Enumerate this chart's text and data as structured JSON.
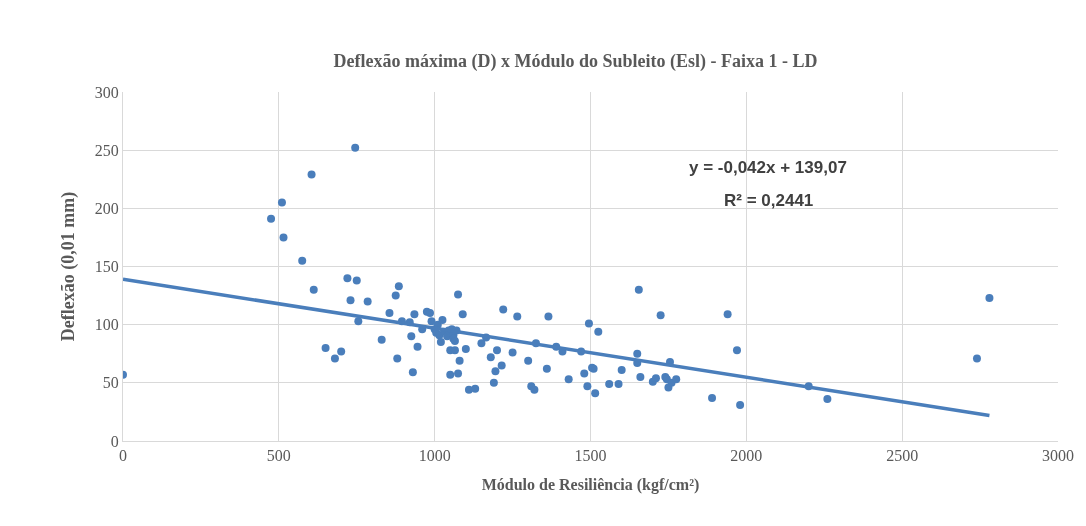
{
  "chart_data": {
    "type": "scatter",
    "title": "Deflexão máxima (D) x Módulo do Subleito (Esl) - Faixa 1 - LD",
    "xlabel": "Módulo de Resiliência (kgf/cm²)",
    "ylabel": "Deflexão (0,01 mm)",
    "annotations": [
      "y = -0,042x + 139,07",
      "R² = 0,2441"
    ],
    "series": [
      {
        "color": "#4a7ebb",
        "marker": "circle",
        "x": [
          0,
          475,
          510,
          515,
          575,
          605,
          612,
          745,
          720,
          730,
          750,
          755,
          785,
          650,
          680,
          700,
          830,
          855,
          875,
          880,
          885,
          895,
          920,
          925,
          930,
          935,
          945,
          960,
          975,
          985,
          990,
          1000,
          1005,
          1010,
          1015,
          1020,
          1025,
          1030,
          1040,
          1045,
          1050,
          1050,
          1055,
          1060,
          1060,
          1065,
          1065,
          1070,
          1075,
          1075,
          1080,
          1090,
          1100,
          1110,
          1130,
          1150,
          1165,
          1180,
          1190,
          1195,
          1200,
          1215,
          1220,
          1250,
          1265,
          1300,
          1310,
          1320,
          1325,
          1360,
          1365,
          1390,
          1410,
          1430,
          1470,
          1480,
          1490,
          1495,
          1505,
          1510,
          1515,
          1525,
          1560,
          1590,
          1600,
          1650,
          1650,
          1655,
          1660,
          1700,
          1710,
          1725,
          1740,
          1745,
          1750,
          1755,
          1760,
          1775,
          1890,
          1940,
          1970,
          1980,
          2200,
          2260,
          2740,
          2780
        ],
        "values": [
          57,
          191,
          205,
          175,
          155,
          229,
          130,
          252,
          140,
          121,
          138,
          103,
          120,
          80,
          71,
          77,
          87,
          110,
          125,
          71,
          133,
          103,
          102,
          90,
          59,
          109,
          81,
          96,
          111,
          110,
          103,
          96,
          93,
          100,
          91,
          85,
          104,
          94,
          90,
          95,
          57,
          78,
          96,
          91,
          88,
          86,
          78,
          95,
          126,
          58,
          69,
          109,
          79,
          44,
          45,
          84,
          89,
          72,
          50,
          60,
          78,
          65,
          113,
          76,
          107,
          69,
          47,
          44,
          84,
          62,
          107,
          81,
          77,
          53,
          77,
          58,
          47,
          101,
          63,
          62,
          41,
          94,
          49,
          49,
          61,
          75,
          67,
          130,
          55,
          51,
          54,
          108,
          55,
          53,
          46,
          68,
          50,
          53,
          37,
          109,
          78,
          31,
          47,
          36,
          71,
          123
        ]
      },
      {
        "type": "line",
        "color": "#4a7ebb",
        "x": [
          0,
          2780
        ],
        "values": [
          139,
          22
        ]
      }
    ],
    "xlim": [
      0,
      3000
    ],
    "xticks": [
      0,
      500,
      1000,
      1500,
      2000,
      2500,
      3000
    ],
    "ylim": [
      0,
      300
    ],
    "yticks": [
      0,
      50,
      100,
      150,
      200,
      250,
      300
    ],
    "grid": true
  }
}
